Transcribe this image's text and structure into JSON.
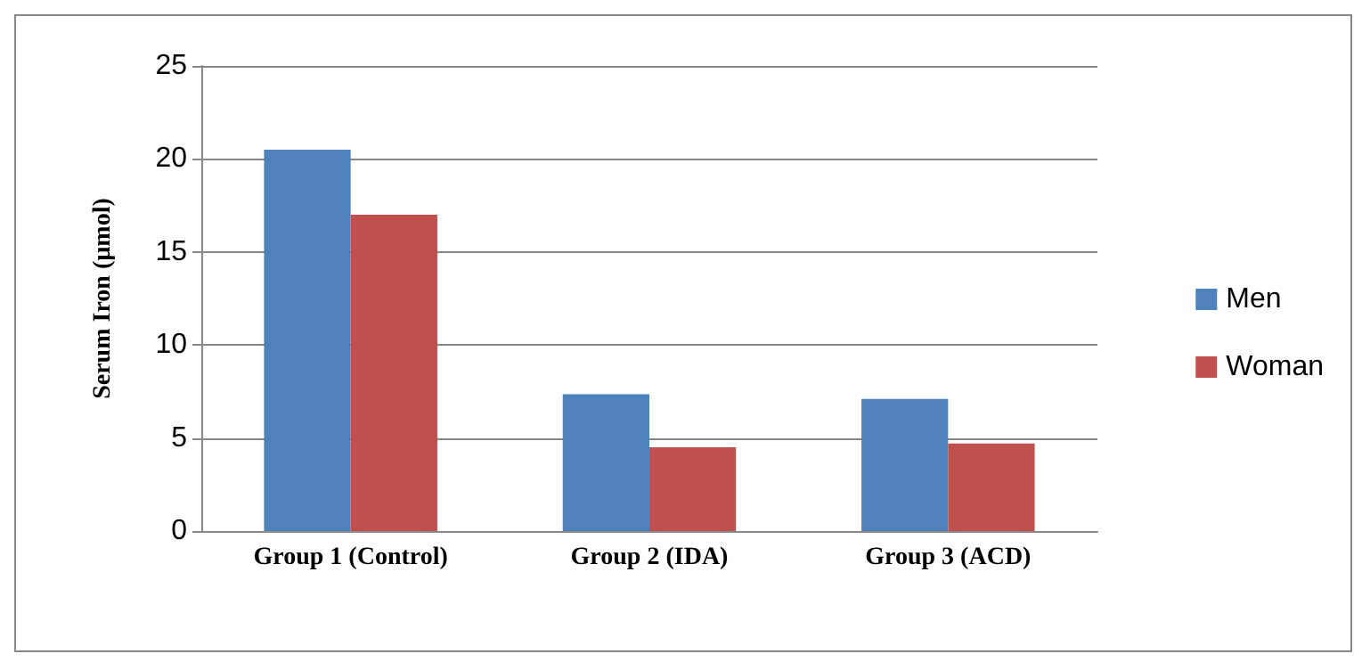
{
  "chart_data": {
    "type": "bar",
    "ylabel": "Serum Iron (µmol)",
    "categories": [
      "Group 1 (Control)",
      "Group 2 (IDA)",
      "Group 3 (ACD)"
    ],
    "series": [
      {
        "name": "Men",
        "color": "#4f81bd",
        "values": [
          20.5,
          7.35,
          7.1
        ]
      },
      {
        "name": "Woman",
        "color": "#c0504d",
        "values": [
          17.0,
          4.5,
          4.7
        ]
      }
    ],
    "ylim": [
      0,
      25
    ],
    "yticks": [
      0,
      5,
      10,
      15,
      20,
      25
    ],
    "grid": "y",
    "legend": "right"
  }
}
